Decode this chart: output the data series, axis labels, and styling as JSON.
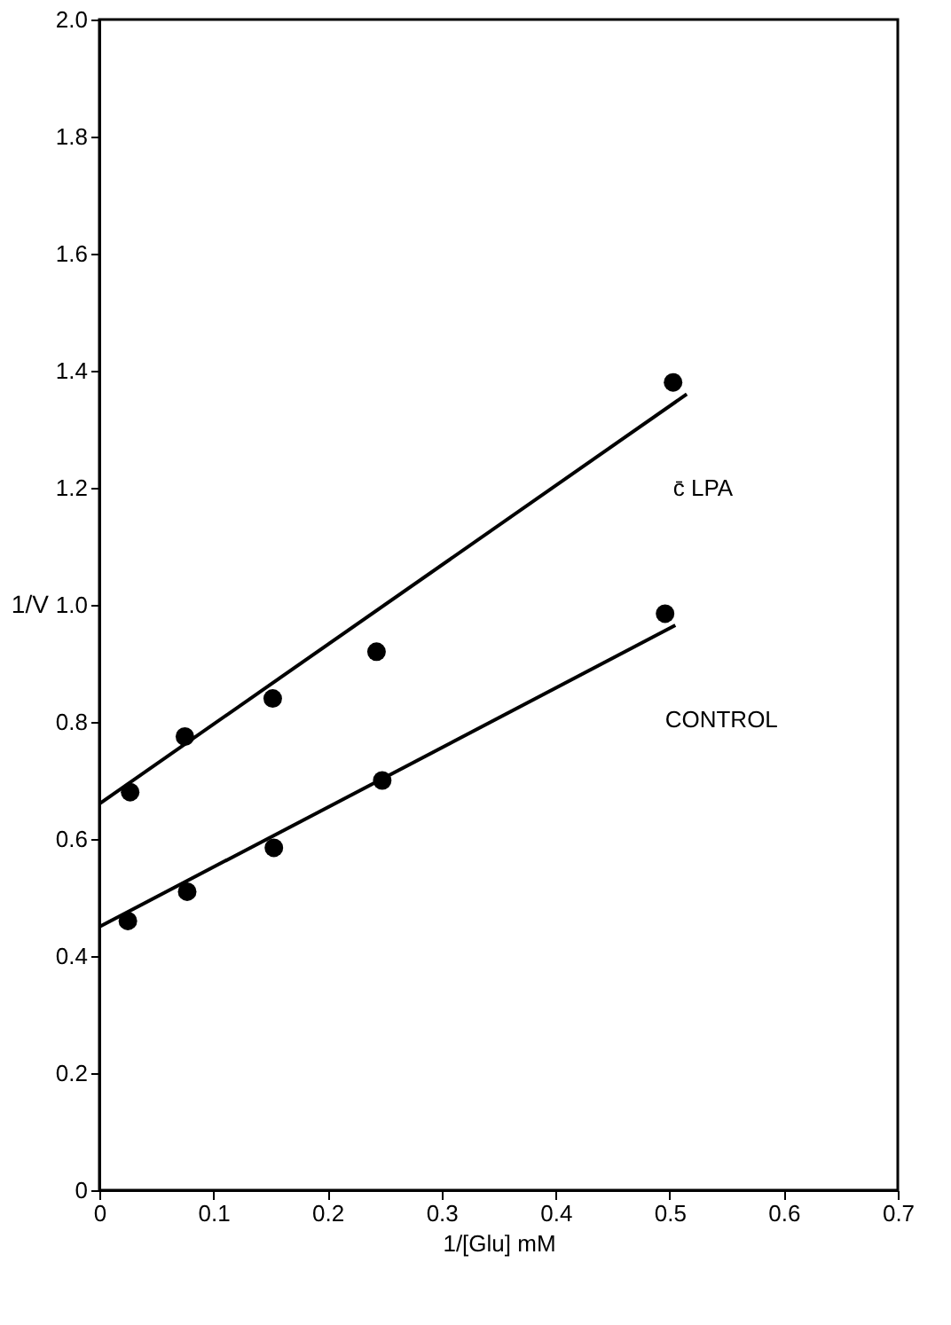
{
  "chart_data": {
    "type": "scatter",
    "xlabel": "1/[Glu] mM",
    "ylabel": "1/V",
    "xlim": [
      0,
      0.7
    ],
    "ylim": [
      0,
      2.0
    ],
    "xticks": [
      0,
      0.1,
      0.2,
      0.3,
      0.4,
      0.5,
      0.6,
      0.7
    ],
    "yticks": [
      0,
      0.2,
      0.4,
      0.6,
      0.8,
      {
        "value": 1,
        "label": "1.0"
      },
      1.2,
      1.4,
      1.6,
      1.8,
      {
        "value": 2,
        "label": "2.0"
      }
    ],
    "grid": false,
    "series": [
      {
        "name": "c̄ LPA",
        "color": "#000000",
        "marker": "circle",
        "x": [
          0.027,
          0.075,
          0.152,
          0.243,
          0.503
        ],
        "values": [
          0.68,
          0.775,
          0.84,
          0.92,
          1.38
        ]
      },
      {
        "name": "CONTROL",
        "color": "#000000",
        "marker": "circle",
        "x": [
          0.025,
          0.077,
          0.153,
          0.248,
          0.496
        ],
        "values": [
          0.46,
          0.51,
          0.585,
          0.7,
          0.985
        ]
      },
      {
        "type": "line",
        "color": "#000000",
        "x": [
          0,
          0.515
        ],
        "values": [
          0.66,
          1.36
        ]
      },
      {
        "type": "line",
        "color": "#000000",
        "x": [
          0,
          0.505
        ],
        "values": [
          0.45,
          0.965
        ]
      }
    ]
  }
}
